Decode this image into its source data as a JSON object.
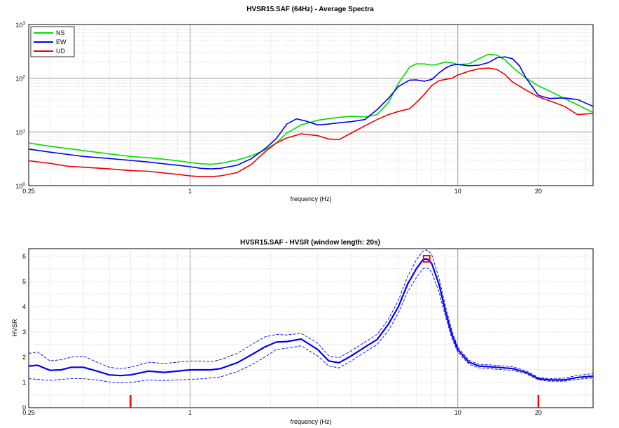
{
  "colors": {
    "NS": "#00dd00",
    "EW": "#0000ee",
    "UD": "#ee0000",
    "hvsr": "#0000ee",
    "marker": "#ee0000"
  },
  "chart_data": [
    {
      "type": "line",
      "title": "HVSR15.SAF (64Hz) - Average Spectra",
      "xlabel": "frequency (Hz)",
      "ylabel": "",
      "xscale": "log",
      "yscale": "log",
      "xlim": [
        0.25,
        32
      ],
      "ylim": [
        1,
        1000
      ],
      "xticks": [
        0.25,
        1,
        10,
        20
      ],
      "xtick_labels": [
        "0.25",
        "1",
        "10",
        "20"
      ],
      "yticks": [
        1,
        10,
        100,
        1000
      ],
      "ytick_labels": [
        {
          "base": "10",
          "exp": "0"
        },
        {
          "base": "10",
          "exp": "1"
        },
        {
          "base": "10",
          "exp": "2"
        },
        {
          "base": "10",
          "exp": "3"
        }
      ],
      "grid": true,
      "legend_position": "top-left",
      "series": [
        {
          "name": "NS",
          "x": [
            0.25,
            0.3,
            0.35,
            0.4,
            0.5,
            0.6,
            0.7,
            0.8,
            0.9,
            1.0,
            1.1,
            1.2,
            1.3,
            1.5,
            1.7,
            1.9,
            2.1,
            2.3,
            2.6,
            3.0,
            3.5,
            4.0,
            4.5,
            5.0,
            5.5,
            6.0,
            6.6,
            7.0,
            7.5,
            8.0,
            8.5,
            9.0,
            9.5,
            10.0,
            11.0,
            12.0,
            13.0,
            14.0,
            15.0,
            16.0,
            18.0,
            20.0,
            22.0,
            25.0,
            28.0,
            32.0
          ],
          "y": [
            6.2,
            5.4,
            4.9,
            4.5,
            3.9,
            3.5,
            3.3,
            3.1,
            2.9,
            2.7,
            2.55,
            2.5,
            2.6,
            3.0,
            3.6,
            4.6,
            6.2,
            9.5,
            13.5,
            16.5,
            18.5,
            19.5,
            19,
            21,
            35,
            80,
            160,
            185,
            185,
            175,
            185,
            200,
            195,
            180,
            185,
            230,
            280,
            270,
            220,
            160,
            100,
            72,
            58,
            42,
            32,
            23
          ]
        },
        {
          "name": "EW",
          "x": [
            0.25,
            0.3,
            0.35,
            0.4,
            0.5,
            0.6,
            0.7,
            0.8,
            0.9,
            1.0,
            1.1,
            1.2,
            1.3,
            1.5,
            1.7,
            1.9,
            2.1,
            2.3,
            2.5,
            2.7,
            3.0,
            3.3,
            3.7,
            4.0,
            4.5,
            5.0,
            5.5,
            6.0,
            6.6,
            7.0,
            7.5,
            8.0,
            8.5,
            9.0,
            9.5,
            10.0,
            11.0,
            12.0,
            13.0,
            14.0,
            15.0,
            16.0,
            17.0,
            18.0,
            20.0,
            22.0,
            25.0,
            28.0,
            32.0
          ],
          "y": [
            4.8,
            4.2,
            3.8,
            3.5,
            3.2,
            2.95,
            2.75,
            2.55,
            2.4,
            2.25,
            2.1,
            2.05,
            2.1,
            2.4,
            3.2,
            4.8,
            7.5,
            14,
            17.5,
            16,
            13.5,
            14,
            15,
            15.5,
            17,
            26,
            42,
            70,
            92,
            93,
            88,
            95,
            125,
            155,
            175,
            180,
            170,
            175,
            195,
            240,
            250,
            230,
            170,
            100,
            48,
            42,
            43,
            40,
            30
          ]
        },
        {
          "name": "UD",
          "x": [
            0.25,
            0.3,
            0.35,
            0.4,
            0.5,
            0.6,
            0.7,
            0.8,
            0.9,
            1.0,
            1.1,
            1.2,
            1.3,
            1.5,
            1.7,
            1.9,
            2.1,
            2.3,
            2.6,
            3.0,
            3.3,
            3.6,
            4.0,
            4.5,
            5.0,
            5.5,
            6.0,
            6.6,
            7.0,
            7.5,
            8.0,
            8.5,
            9.0,
            9.5,
            10.0,
            11.0,
            12.0,
            13.0,
            14.0,
            15.0,
            16.0,
            18.0,
            20.0,
            22.0,
            25.0,
            28.0,
            32.0
          ],
          "y": [
            2.9,
            2.6,
            2.3,
            2.2,
            2.05,
            1.9,
            1.85,
            1.72,
            1.62,
            1.52,
            1.47,
            1.47,
            1.52,
            1.75,
            2.5,
            4.2,
            6.2,
            7.7,
            9.2,
            8.5,
            7.4,
            7.2,
            9.5,
            13,
            17,
            21,
            24,
            27,
            35,
            50,
            73,
            90,
            95,
            100,
            115,
            135,
            150,
            155,
            145,
            118,
            85,
            60,
            45,
            38,
            30,
            21,
            22
          ]
        }
      ]
    },
    {
      "type": "line",
      "title": "HVSR15.SAF - HVSR (window length: 20s)",
      "xlabel": "frequency (Hz)",
      "ylabel": "HVSR",
      "xscale": "log",
      "yscale": "linear",
      "xlim": [
        0.25,
        32
      ],
      "ylim": [
        0,
        6.3
      ],
      "xticks": [
        0.25,
        1,
        10,
        20
      ],
      "xtick_labels": [
        "0.25",
        "1",
        "10",
        "20"
      ],
      "yticks": [
        0,
        1,
        2,
        3,
        4,
        5,
        6
      ],
      "ytick_labels": [
        "0",
        "1",
        "2",
        "3",
        "4",
        "5",
        "6"
      ],
      "grid": true,
      "x": [
        0.25,
        0.27,
        0.3,
        0.33,
        0.36,
        0.4,
        0.45,
        0.5,
        0.55,
        0.6,
        0.7,
        0.8,
        0.9,
        1.0,
        1.1,
        1.2,
        1.3,
        1.5,
        1.7,
        1.9,
        2.1,
        2.3,
        2.6,
        3.0,
        3.3,
        3.6,
        4.0,
        4.5,
        5.0,
        5.5,
        6.0,
        6.5,
        7.0,
        7.4,
        7.6,
        7.8,
        8.0,
        8.5,
        9.0,
        9.5,
        10.0,
        11.0,
        12.0,
        14.0,
        16.0,
        18.0,
        20.0,
        22.0,
        25.0,
        28.0,
        32.0
      ],
      "series": [
        {
          "name": "",
          "style": "solid",
          "values": [
            1.65,
            1.68,
            1.48,
            1.5,
            1.6,
            1.6,
            1.45,
            1.3,
            1.27,
            1.3,
            1.45,
            1.4,
            1.45,
            1.5,
            1.5,
            1.5,
            1.55,
            1.78,
            2.1,
            2.4,
            2.6,
            2.62,
            2.72,
            2.3,
            1.85,
            1.78,
            2.05,
            2.4,
            2.7,
            3.3,
            4.0,
            4.9,
            5.5,
            5.85,
            5.9,
            5.85,
            5.7,
            4.9,
            3.8,
            2.9,
            2.3,
            1.8,
            1.65,
            1.6,
            1.55,
            1.4,
            1.15,
            1.1,
            1.1,
            1.2,
            1.25
          ]
        },
        {
          "name": "",
          "style": "dashed",
          "values": [
            2.15,
            2.2,
            1.85,
            1.9,
            2.0,
            2.05,
            1.8,
            1.6,
            1.55,
            1.6,
            1.8,
            1.75,
            1.8,
            1.85,
            1.85,
            1.82,
            1.9,
            2.15,
            2.5,
            2.8,
            2.9,
            2.88,
            2.95,
            2.55,
            2.05,
            1.98,
            2.25,
            2.6,
            2.9,
            3.5,
            4.25,
            5.2,
            5.85,
            6.2,
            6.25,
            6.2,
            6.05,
            5.15,
            4.0,
            3.05,
            2.4,
            1.88,
            1.72,
            1.68,
            1.62,
            1.46,
            1.2,
            1.15,
            1.17,
            1.28,
            1.35
          ]
        },
        {
          "name": "",
          "style": "dashed",
          "values": [
            1.15,
            1.12,
            1.08,
            1.12,
            1.15,
            1.15,
            1.1,
            1.02,
            0.98,
            1.0,
            1.1,
            1.07,
            1.1,
            1.12,
            1.14,
            1.18,
            1.22,
            1.42,
            1.7,
            2.0,
            2.3,
            2.36,
            2.45,
            2.05,
            1.65,
            1.58,
            1.85,
            2.2,
            2.5,
            3.05,
            3.75,
            4.6,
            5.15,
            5.5,
            5.55,
            5.5,
            5.35,
            4.6,
            3.6,
            2.75,
            2.2,
            1.72,
            1.58,
            1.52,
            1.48,
            1.34,
            1.1,
            1.05,
            1.05,
            1.12,
            1.18
          ]
        }
      ],
      "peak": {
        "x": 7.65,
        "y": 5.9
      },
      "markers_x": [
        0.6,
        20
      ]
    }
  ]
}
